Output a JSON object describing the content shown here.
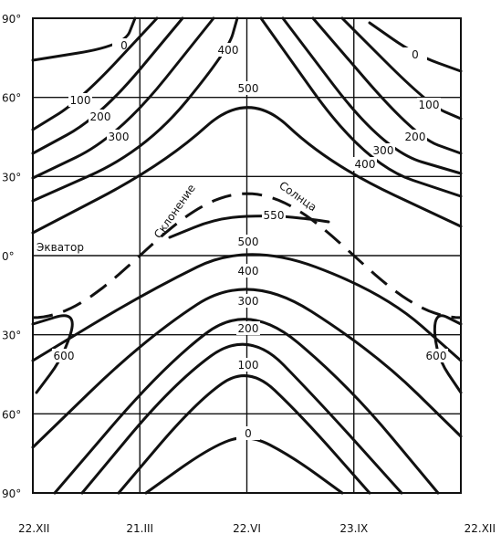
{
  "chart_data": {
    "type": "line",
    "title": "",
    "xlabel": "",
    "ylabel": "",
    "x_ticks": [
      "22.XII",
      "21.III",
      "22.VI",
      "23.IX",
      "22.XII"
    ],
    "y_ticks": [
      "90°",
      "60°",
      "30°",
      "0°",
      "30°",
      "60°",
      "90°"
    ],
    "ylim": [
      -90,
      90
    ],
    "grid": true,
    "equator_label": "Экватор",
    "sun_declination_label_1": "Склонение",
    "sun_declination_label_2": "Солнца",
    "sun_declination_curve": {
      "x_day_of_year": [
        0,
        91,
        182,
        274,
        365
      ],
      "lat_deg": [
        -23.5,
        0,
        23.5,
        0,
        -23.5
      ]
    },
    "isolines": [
      {
        "value": 0,
        "label": "0",
        "points": [
          [
            36,
            66
          ],
          [
            136,
            50
          ],
          [
            148,
            20
          ]
        ]
      },
      {
        "value": 0,
        "label": "0",
        "points": [
          [
            405,
            25
          ],
          [
            455,
            60
          ],
          [
            505,
            78
          ]
        ]
      },
      {
        "value": 100,
        "label": "100",
        "points": [
          [
            36,
            142
          ],
          [
            88,
            110
          ],
          [
            172,
            20
          ]
        ]
      },
      {
        "value": 100,
        "label": "100",
        "points": [
          [
            375,
            20
          ],
          [
            470,
            115
          ],
          [
            505,
            130
          ]
        ]
      },
      {
        "value": 200,
        "label": "200",
        "points": [
          [
            36,
            168
          ],
          [
            110,
            128
          ],
          [
            200,
            20
          ]
        ]
      },
      {
        "value": 200,
        "label": "200",
        "points": [
          [
            343,
            20
          ],
          [
            455,
            150
          ],
          [
            505,
            168
          ]
        ]
      },
      {
        "value": 300,
        "label": "300",
        "points": [
          [
            36,
            195
          ],
          [
            130,
            150
          ],
          [
            234,
            20
          ]
        ]
      },
      {
        "value": 300,
        "label": "300",
        "points": [
          [
            310,
            20
          ],
          [
            420,
            165
          ],
          [
            505,
            190
          ]
        ]
      },
      {
        "value": 400,
        "label": "400",
        "points": [
          [
            36,
            220
          ],
          [
            160,
            165
          ],
          [
            250,
            55
          ],
          [
            260,
            20
          ]
        ]
      },
      {
        "value": 400,
        "label": "400",
        "points": [
          [
            286,
            20
          ],
          [
            400,
            180
          ],
          [
            505,
            215
          ]
        ]
      },
      {
        "value": 500,
        "label": "500",
        "points": [
          [
            36,
            255
          ],
          [
            180,
            180
          ],
          [
            272,
            97
          ],
          [
            360,
            180
          ],
          [
            505,
            248
          ]
        ]
      },
      {
        "value": 550,
        "label": "550",
        "points": [
          [
            186,
            260
          ],
          [
            240,
            238
          ],
          [
            300,
            236
          ],
          [
            340,
            240
          ],
          [
            360,
            243
          ]
        ]
      },
      {
        "value": 500,
        "label": "500",
        "points": [
          [
            36,
            395
          ],
          [
            160,
            320
          ],
          [
            272,
            265
          ],
          [
            420,
            320
          ],
          [
            505,
            395
          ]
        ]
      },
      {
        "value": 400,
        "label": "400",
        "points": [
          [
            36,
            490
          ],
          [
            160,
            370
          ],
          [
            272,
            297
          ],
          [
            410,
            385
          ],
          [
            505,
            478
          ]
        ]
      },
      {
        "value": 300,
        "label": "300",
        "points": [
          [
            60,
            540
          ],
          [
            180,
            400
          ],
          [
            272,
            330
          ],
          [
            380,
            420
          ],
          [
            480,
            540
          ]
        ]
      },
      {
        "value": 200,
        "label": "200",
        "points": [
          [
            90,
            540
          ],
          [
            190,
            420
          ],
          [
            272,
            360
          ],
          [
            350,
            440
          ],
          [
            440,
            540
          ]
        ]
      },
      {
        "value": 100,
        "label": "100",
        "points": [
          [
            130,
            540
          ],
          [
            215,
            440
          ],
          [
            272,
            400
          ],
          [
            330,
            455
          ],
          [
            405,
            540
          ]
        ]
      },
      {
        "value": 0,
        "label": "0",
        "points": [
          [
            160,
            540
          ],
          [
            230,
            490
          ],
          [
            272,
            475
          ],
          [
            320,
            500
          ],
          [
            375,
            540
          ]
        ]
      },
      {
        "value": 600,
        "label": "600",
        "points": [
          [
            36,
            355
          ],
          [
            85,
            340
          ],
          [
            70,
            390
          ],
          [
            40,
            430
          ]
        ]
      },
      {
        "value": 600,
        "label": "600",
        "points": [
          [
            505,
            355
          ],
          [
            475,
            340
          ],
          [
            478,
            390
          ],
          [
            505,
            430
          ]
        ]
      }
    ]
  }
}
